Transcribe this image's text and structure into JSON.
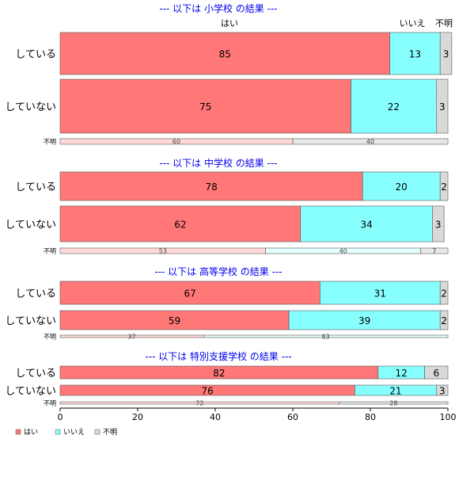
{
  "chart_data": {
    "type": "bar",
    "stacked": true,
    "orientation": "horizontal",
    "xlim": [
      0,
      100
    ],
    "xticks": [
      0,
      20,
      40,
      60,
      80,
      100
    ],
    "legend": {
      "placement": "bottom-left",
      "items": [
        {
          "name": "はい",
          "color": "#ff7777"
        },
        {
          "name": "いいえ",
          "color": "#88ffff"
        },
        {
          "name": "不明",
          "color": "#d9d9d9"
        }
      ]
    },
    "column_headers": [
      "はい",
      "いいえ",
      "不明"
    ],
    "panels": [
      {
        "title": "--- 以下は 小学校 の結果 ---",
        "rows": [
          {
            "label": "している",
            "values": [
              85,
              13,
              3
            ]
          },
          {
            "label": "していない",
            "values": [
              75,
              22,
              3
            ]
          },
          {
            "label": "不明",
            "values": [
              60,
              0,
              40
            ]
          }
        ]
      },
      {
        "title": "--- 以下は 中学校 の結果 ---",
        "rows": [
          {
            "label": "している",
            "values": [
              78,
              20,
              2
            ]
          },
          {
            "label": "していない",
            "values": [
              62,
              34,
              3
            ]
          },
          {
            "label": "不明",
            "values": [
              53,
              40,
              7
            ]
          }
        ]
      },
      {
        "title": "--- 以下は 高等学校 の結果 ---",
        "rows": [
          {
            "label": "している",
            "values": [
              67,
              31,
              2
            ]
          },
          {
            "label": "していない",
            "values": [
              59,
              39,
              2
            ]
          },
          {
            "label": "不明",
            "values": [
              37,
              63,
              0
            ]
          }
        ]
      },
      {
        "title": "--- 以下は 特別支援学校 の結果 ---",
        "rows": [
          {
            "label": "している",
            "values": [
              82,
              12,
              6
            ]
          },
          {
            "label": "していない",
            "values": [
              76,
              21,
              3
            ]
          },
          {
            "label": "不明",
            "values": [
              72,
              0,
              28
            ]
          }
        ]
      }
    ]
  }
}
